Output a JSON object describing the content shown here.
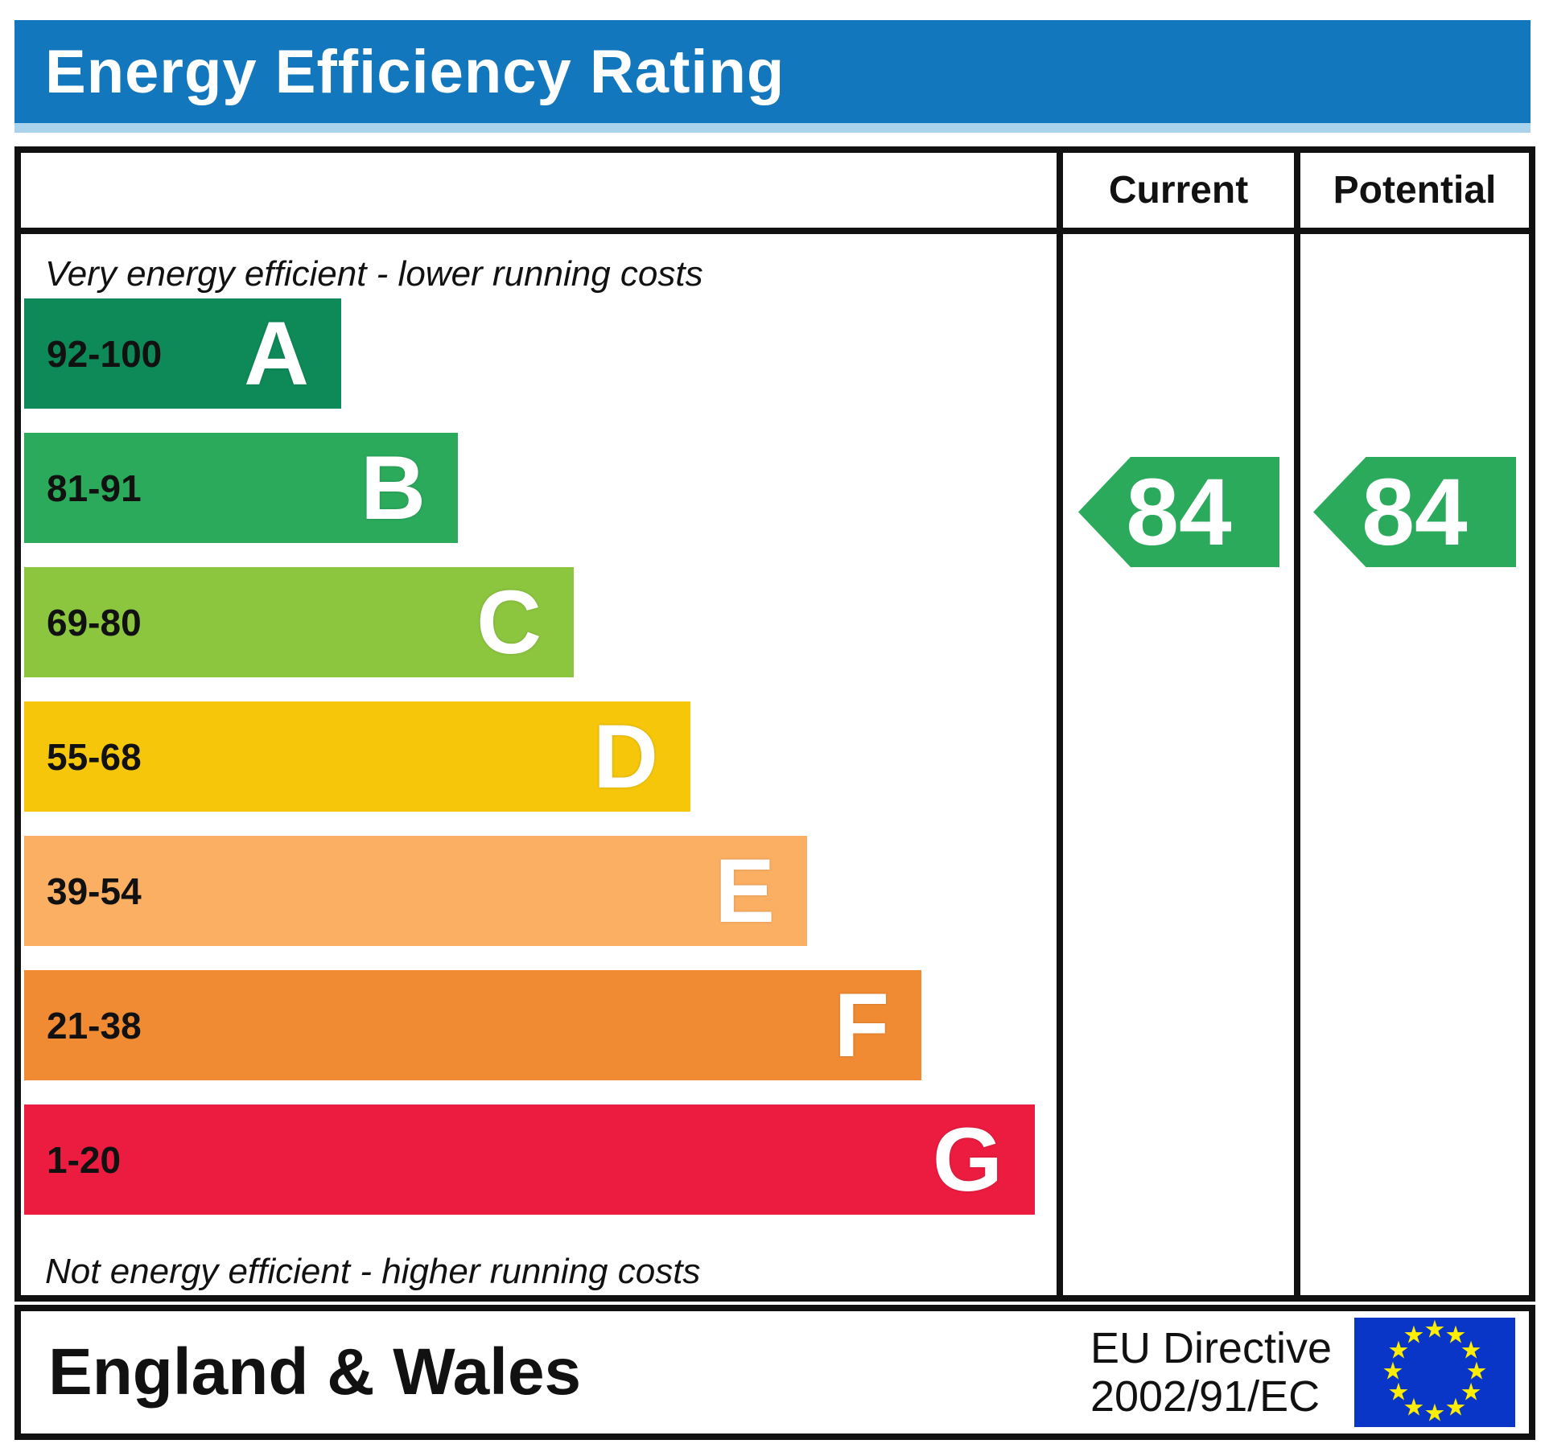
{
  "title": "Energy Efficiency Rating",
  "title_bar_color": "#1277bd",
  "title_bar_trim_color": "#a9d2ec",
  "header": {
    "current_label": "Current",
    "potential_label": "Potential"
  },
  "notes": {
    "top": "Very energy efficient - lower running costs",
    "bottom": "Not energy efficient - higher running costs"
  },
  "bands": [
    {
      "letter": "A",
      "range": "92-100",
      "color": "#0e8a58",
      "width_pct": 30.7
    },
    {
      "letter": "B",
      "range": "81-91",
      "color": "#2baa5c",
      "width_pct": 42.0
    },
    {
      "letter": "C",
      "range": "69-80",
      "color": "#8cc63f",
      "width_pct": 53.2
    },
    {
      "letter": "D",
      "range": "55-68",
      "color": "#f6c60b",
      "width_pct": 64.5
    },
    {
      "letter": "E",
      "range": "39-54",
      "color": "#fbaf63",
      "width_pct": 75.8
    },
    {
      "letter": "F",
      "range": "21-38",
      "color": "#f08b33",
      "width_pct": 86.9
    },
    {
      "letter": "G",
      "range": "1-20",
      "color": "#ec1c40",
      "width_pct": 97.9
    }
  ],
  "ratings": {
    "current": {
      "value": "84",
      "band": "B",
      "color": "#2baa5c"
    },
    "potential": {
      "value": "84",
      "band": "B",
      "color": "#2baa5c"
    }
  },
  "footer": {
    "region": "England & Wales",
    "directive_line1": "EU Directive",
    "directive_line2": "2002/91/EC",
    "flag": {
      "name": "eu-flag",
      "field_color": "#0a36c8",
      "star_color": "#ffee00",
      "star_count": 12
    }
  },
  "chart_data": {
    "type": "bar",
    "title": "Energy Efficiency Rating",
    "categories": [
      "A",
      "B",
      "C",
      "D",
      "E",
      "F",
      "G"
    ],
    "band_ranges": [
      "92-100",
      "81-91",
      "69-80",
      "55-68",
      "39-54",
      "21-38",
      "1-20"
    ],
    "band_colors": [
      "#0e8a58",
      "#2baa5c",
      "#8cc63f",
      "#f6c60b",
      "#fbaf63",
      "#f08b33",
      "#ec1c40"
    ],
    "bar_lengths_pct": [
      30.7,
      42.0,
      53.2,
      64.5,
      75.8,
      86.9,
      97.9
    ],
    "value_scale": [
      1,
      100
    ],
    "series": [
      {
        "name": "Current",
        "values": [
          84
        ],
        "band": "B"
      },
      {
        "name": "Potential",
        "values": [
          84
        ],
        "band": "B"
      }
    ],
    "legend_position": "top-right-columns",
    "notes": [
      "Very energy efficient - lower running costs",
      "Not energy efficient - higher running costs"
    ],
    "footer": "England & Wales | EU Directive 2002/91/EC"
  }
}
